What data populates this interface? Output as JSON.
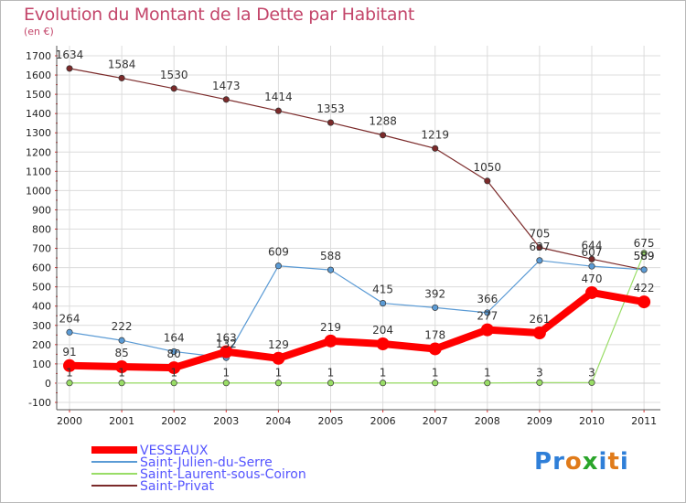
{
  "header": {
    "title": "Evolution du Montant de la Dette par Habitant",
    "unit": "(en €)"
  },
  "logo": {
    "text": "Proxiti",
    "colors": [
      "#2f7fd8",
      "#2f7fd8",
      "#e07b1a",
      "#2aa52a",
      "#2f7fd8",
      "#e07b1a",
      "#2f7fd8"
    ]
  },
  "colors": {
    "title": "#c3456a",
    "grid": "#dcdcdc",
    "axis": "#555555",
    "legend_text": "#5555ff"
  },
  "chart_data": {
    "type": "line",
    "title": "Evolution du Montant de la Dette par Habitant",
    "ylabel": "(en €)",
    "xlabel": "",
    "ylim": [
      -100,
      1700
    ],
    "ytick_step": 100,
    "grid": true,
    "legend_position": "bottom-left",
    "x": [
      "2000",
      "2001",
      "2002",
      "2003",
      "2004",
      "2005",
      "2006",
      "2007",
      "2008",
      "2009",
      "2010",
      "2011"
    ],
    "series": [
      {
        "name": "VESSEAUX",
        "color": "#ff0000",
        "values": [
          91,
          85,
          80,
          163,
          129,
          219,
          204,
          178,
          277,
          261,
          470,
          422
        ],
        "labels": [
          "91",
          "85",
          "80",
          "163",
          "129",
          "219",
          "204",
          "178",
          "277",
          "261",
          "470",
          "422"
        ]
      },
      {
        "name": "Saint-Julien-du-Serre",
        "color": "#5b9bd5",
        "values": [
          264,
          222,
          164,
          132,
          609,
          588,
          415,
          392,
          366,
          637,
          607,
          589
        ],
        "labels": [
          "264",
          "222",
          "164",
          "132",
          "609",
          "588",
          "415",
          "392",
          "366",
          "637",
          "607",
          "589"
        ]
      },
      {
        "name": "Saint-Laurent-sous-Coiron",
        "color": "#99dd66",
        "values": [
          1,
          1,
          1,
          1,
          1,
          1,
          1,
          1,
          1,
          3,
          3,
          675
        ],
        "labels": [
          "1",
          "1",
          "1",
          "1",
          "1",
          "1",
          "1",
          "1",
          "1",
          "3",
          "3",
          "675"
        ]
      },
      {
        "name": "Saint-Privat",
        "color": "#7b2a2a",
        "values": [
          1634,
          1584,
          1530,
          1473,
          1414,
          1353,
          1288,
          1219,
          1050,
          705,
          644,
          589
        ],
        "labels": [
          "1634",
          "1584",
          "1530",
          "1473",
          "1414",
          "1353",
          "1288",
          "1219",
          "1050",
          "705",
          "644",
          "589"
        ]
      }
    ]
  }
}
